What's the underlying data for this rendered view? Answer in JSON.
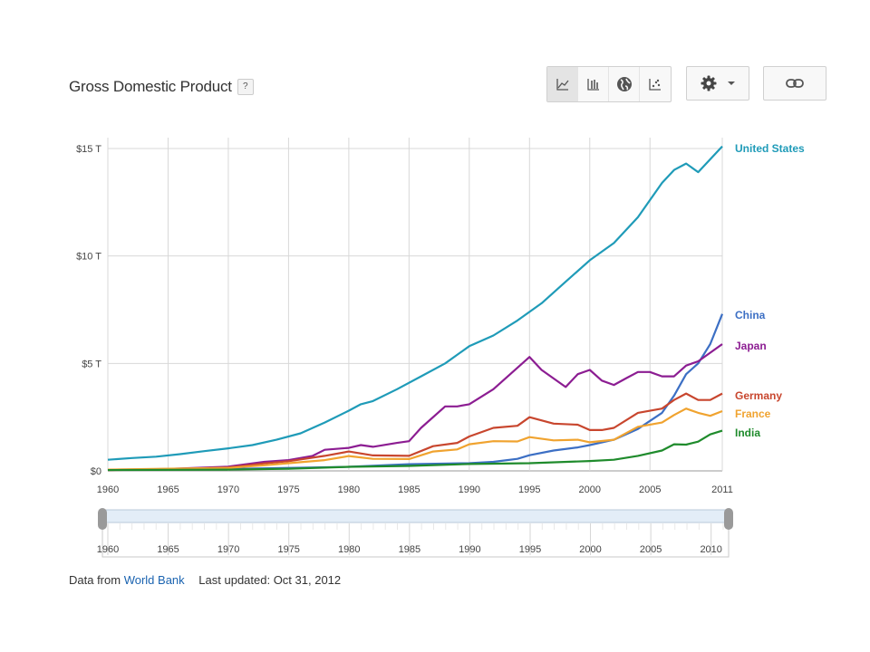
{
  "header": {
    "title": "Gross Domestic Product",
    "help_label": "?"
  },
  "toolbar": {
    "chart_types": [
      {
        "name": "line-chart-icon",
        "active": true
      },
      {
        "name": "bar-chart-icon",
        "active": false
      },
      {
        "name": "map-globe-icon",
        "active": false
      },
      {
        "name": "scatter-chart-icon",
        "active": false
      }
    ],
    "settings_icon": "gear-icon",
    "link_icon": "link-icon"
  },
  "chart_data": {
    "type": "line",
    "title": "",
    "xlabel": "",
    "ylabel": "",
    "xlim": [
      1960,
      2011
    ],
    "ylim": [
      0,
      15
    ],
    "y_ticks": [
      {
        "value": 0,
        "label": "$0"
      },
      {
        "value": 5,
        "label": "$5 T"
      },
      {
        "value": 10,
        "label": "$10 T"
      },
      {
        "value": 15,
        "label": "$15 T"
      }
    ],
    "x_ticks": [
      1960,
      1965,
      1970,
      1975,
      1980,
      1985,
      1990,
      1995,
      2000,
      2005,
      2011
    ],
    "grid": true,
    "legend": "inline-right",
    "series": [
      {
        "name": "United States",
        "color": "#1f9bb8",
        "points": [
          [
            1960,
            0.52
          ],
          [
            1962,
            0.6
          ],
          [
            1964,
            0.66
          ],
          [
            1966,
            0.78
          ],
          [
            1968,
            0.92
          ],
          [
            1970,
            1.05
          ],
          [
            1972,
            1.2
          ],
          [
            1974,
            1.45
          ],
          [
            1976,
            1.75
          ],
          [
            1978,
            2.25
          ],
          [
            1980,
            2.8
          ],
          [
            1981,
            3.1
          ],
          [
            1982,
            3.25
          ],
          [
            1984,
            3.8
          ],
          [
            1986,
            4.4
          ],
          [
            1988,
            5.0
          ],
          [
            1990,
            5.8
          ],
          [
            1992,
            6.3
          ],
          [
            1994,
            7.0
          ],
          [
            1996,
            7.8
          ],
          [
            1998,
            8.8
          ],
          [
            2000,
            9.8
          ],
          [
            2002,
            10.6
          ],
          [
            2004,
            11.8
          ],
          [
            2006,
            13.4
          ],
          [
            2007,
            14.0
          ],
          [
            2008,
            14.3
          ],
          [
            2009,
            13.9
          ],
          [
            2010,
            14.5
          ],
          [
            2011,
            15.1
          ]
        ]
      },
      {
        "name": "China",
        "color": "#3c6fc4",
        "points": [
          [
            1960,
            0.06
          ],
          [
            1970,
            0.09
          ],
          [
            1980,
            0.19
          ],
          [
            1985,
            0.31
          ],
          [
            1990,
            0.36
          ],
          [
            1992,
            0.42
          ],
          [
            1994,
            0.56
          ],
          [
            1995,
            0.73
          ],
          [
            1997,
            0.95
          ],
          [
            1999,
            1.09
          ],
          [
            2000,
            1.2
          ],
          [
            2002,
            1.45
          ],
          [
            2004,
            1.95
          ],
          [
            2006,
            2.7
          ],
          [
            2007,
            3.5
          ],
          [
            2008,
            4.5
          ],
          [
            2009,
            5.0
          ],
          [
            2010,
            5.9
          ],
          [
            2011,
            7.3
          ]
        ]
      },
      {
        "name": "Japan",
        "color": "#8c1d92",
        "points": [
          [
            1960,
            0.04
          ],
          [
            1965,
            0.09
          ],
          [
            1970,
            0.2
          ],
          [
            1973,
            0.42
          ],
          [
            1975,
            0.5
          ],
          [
            1977,
            0.7
          ],
          [
            1978,
            0.98
          ],
          [
            1980,
            1.07
          ],
          [
            1981,
            1.2
          ],
          [
            1982,
            1.12
          ],
          [
            1984,
            1.3
          ],
          [
            1985,
            1.38
          ],
          [
            1986,
            2.0
          ],
          [
            1988,
            3.0
          ],
          [
            1989,
            3.0
          ],
          [
            1990,
            3.1
          ],
          [
            1992,
            3.8
          ],
          [
            1994,
            4.8
          ],
          [
            1995,
            5.3
          ],
          [
            1996,
            4.7
          ],
          [
            1998,
            3.9
          ],
          [
            1999,
            4.5
          ],
          [
            2000,
            4.7
          ],
          [
            2001,
            4.2
          ],
          [
            2002,
            4.0
          ],
          [
            2003,
            4.3
          ],
          [
            2004,
            4.6
          ],
          [
            2005,
            4.6
          ],
          [
            2006,
            4.4
          ],
          [
            2007,
            4.4
          ],
          [
            2008,
            4.9
          ],
          [
            2009,
            5.1
          ],
          [
            2010,
            5.5
          ],
          [
            2011,
            5.9
          ]
        ]
      },
      {
        "name": "Germany",
        "color": "#c8462e",
        "points": [
          [
            1960,
            0.04
          ],
          [
            1965,
            0.07
          ],
          [
            1970,
            0.16
          ],
          [
            1973,
            0.35
          ],
          [
            1975,
            0.45
          ],
          [
            1978,
            0.7
          ],
          [
            1980,
            0.9
          ],
          [
            1982,
            0.72
          ],
          [
            1985,
            0.7
          ],
          [
            1987,
            1.15
          ],
          [
            1989,
            1.3
          ],
          [
            1990,
            1.6
          ],
          [
            1992,
            2.0
          ],
          [
            1994,
            2.1
          ],
          [
            1995,
            2.5
          ],
          [
            1997,
            2.2
          ],
          [
            1999,
            2.15
          ],
          [
            2000,
            1.9
          ],
          [
            2001,
            1.9
          ],
          [
            2002,
            2.0
          ],
          [
            2004,
            2.7
          ],
          [
            2006,
            2.9
          ],
          [
            2007,
            3.3
          ],
          [
            2008,
            3.6
          ],
          [
            2009,
            3.3
          ],
          [
            2010,
            3.3
          ],
          [
            2011,
            3.6
          ]
        ]
      },
      {
        "name": "France",
        "color": "#f0a32f",
        "points": [
          [
            1960,
            0.06
          ],
          [
            1965,
            0.1
          ],
          [
            1970,
            0.14
          ],
          [
            1973,
            0.26
          ],
          [
            1975,
            0.36
          ],
          [
            1978,
            0.5
          ],
          [
            1980,
            0.69
          ],
          [
            1982,
            0.56
          ],
          [
            1985,
            0.55
          ],
          [
            1987,
            0.9
          ],
          [
            1989,
            1.0
          ],
          [
            1990,
            1.24
          ],
          [
            1992,
            1.38
          ],
          [
            1994,
            1.37
          ],
          [
            1995,
            1.57
          ],
          [
            1997,
            1.42
          ],
          [
            1999,
            1.45
          ],
          [
            2000,
            1.33
          ],
          [
            2002,
            1.45
          ],
          [
            2004,
            2.05
          ],
          [
            2006,
            2.25
          ],
          [
            2007,
            2.6
          ],
          [
            2008,
            2.9
          ],
          [
            2009,
            2.7
          ],
          [
            2010,
            2.56
          ],
          [
            2011,
            2.78
          ]
        ]
      },
      {
        "name": "India",
        "color": "#1f8b2c",
        "points": [
          [
            1960,
            0.04
          ],
          [
            1970,
            0.06
          ],
          [
            1975,
            0.1
          ],
          [
            1980,
            0.19
          ],
          [
            1985,
            0.23
          ],
          [
            1990,
            0.32
          ],
          [
            1995,
            0.36
          ],
          [
            2000,
            0.46
          ],
          [
            2002,
            0.52
          ],
          [
            2004,
            0.7
          ],
          [
            2006,
            0.95
          ],
          [
            2007,
            1.24
          ],
          [
            2008,
            1.22
          ],
          [
            2009,
            1.36
          ],
          [
            2010,
            1.7
          ],
          [
            2011,
            1.87
          ]
        ]
      }
    ],
    "range_slider": {
      "start": 1960,
      "end": 2011,
      "ticks": [
        1960,
        1965,
        1970,
        1975,
        1980,
        1985,
        1990,
        1995,
        2000,
        2005,
        2010
      ]
    }
  },
  "footer": {
    "source_prefix": "Data from",
    "source_link": "World Bank",
    "updated": "Last updated: Oct 31, 2012"
  }
}
